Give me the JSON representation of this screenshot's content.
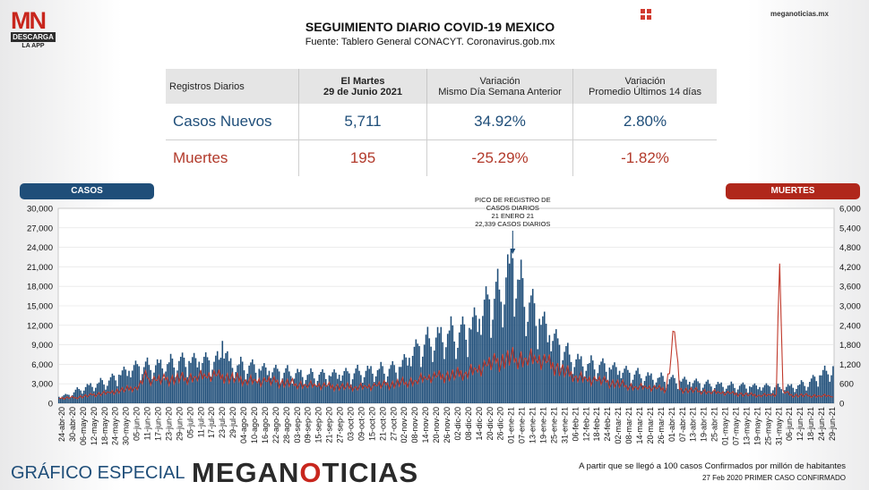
{
  "brand": {
    "logo_mn": "MN",
    "logo_desc": "DESCARGA",
    "logo_app": "LA APP",
    "site": "meganoticias.mx",
    "footer_left": "GRÁFICO ESPECIAL",
    "footer_brand_a": "MEGAN",
    "footer_brand_b": "O",
    "footer_brand_c": "TICIAS"
  },
  "header": {
    "title": "SEGUIMIENTO DIARIO COVID-19 MEXICO",
    "source": "Fuente: Tablero General CONACYT. Coronavirus.gob.mx"
  },
  "table": {
    "h0": "Registros Diarios",
    "h1a": "El Martes",
    "h1b": "29 de Junio 2021",
    "h2a": "Variación",
    "h2b": "Mismo Día Semana Anterior",
    "h3a": "Variación",
    "h3b": "Promedio Últimos 14 días",
    "rows": [
      {
        "label": "Casos Nuevos",
        "value": "5,711",
        "var_week": "34.92%",
        "var_14": "2.80%"
      },
      {
        "label": "Muertes",
        "value": "195",
        "var_week": "-25.29%",
        "var_14": "-1.82%"
      }
    ]
  },
  "legend": {
    "casos": "CASOS",
    "muertes": "MUERTES"
  },
  "footer": {
    "note1": "A partir que se llegó a 100 casos Confirmados por millón de habitantes",
    "note2": "27 Feb 2020 PRIMER CASO CONFIRMADO"
  },
  "chart_data": {
    "type": "bar",
    "colors": {
      "cases": "#1f4e79",
      "deaths": "#c0392b",
      "grid": "#e0e0e0"
    },
    "y_left": {
      "label": "CASOS",
      "ylim": [
        0,
        30000
      ],
      "ticks": [
        "0",
        "3,000",
        "6,000",
        "9,000",
        "12,000",
        "15,000",
        "18,000",
        "21,000",
        "24,000",
        "27,000",
        "30,000"
      ]
    },
    "y_right": {
      "label": "MUERTES",
      "ylim": [
        0,
        6000
      ],
      "ticks": [
        "0",
        "600",
        "1,200",
        "1,800",
        "2,400",
        "3,000",
        "3,600",
        "4,200",
        "4,800",
        "5,400",
        "6,000"
      ]
    },
    "x_ticks": [
      "24-abr-20",
      "30-abr-20",
      "06-may-20",
      "12-may-20",
      "18-may-20",
      "24-may-20",
      "30-may-20",
      "05-jun-20",
      "11-jun-20",
      "17-jun-20",
      "23-jun-20",
      "29-jun-20",
      "05-jul-20",
      "11-jul-20",
      "17-jul-20",
      "23-jul-20",
      "29-jul-20",
      "04-ago-20",
      "10-ago-20",
      "16-ago-20",
      "22-ago-20",
      "28-ago-20",
      "03-sep-20",
      "09-sep-20",
      "15-sep-20",
      "21-sep-20",
      "27-sep-20",
      "03-oct-20",
      "09-oct-20",
      "15-oct-20",
      "21-oct-20",
      "27-oct-20",
      "02-nov-20",
      "08-nov-20",
      "14-nov-20",
      "20-nov-20",
      "26-nov-20",
      "02-dic-20",
      "08-dic-20",
      "14-dic-20",
      "20-dic-20",
      "26-dic-20",
      "01-ene-21",
      "07-ene-21",
      "13-ene-21",
      "19-ene-21",
      "25-ene-21",
      "31-ene-21",
      "06-feb-21",
      "12-feb-21",
      "18-feb-21",
      "24-feb-21",
      "02-mar-21",
      "08-mar-21",
      "14-mar-21",
      "20-mar-21",
      "26-mar-21",
      "01-abr-21",
      "07-abr-21",
      "13-abr-21",
      "19-abr-21",
      "25-abr-21",
      "01-may-21",
      "07-may-21",
      "13-may-21",
      "19-may-21",
      "25-may-21",
      "31-may-21",
      "06-jun-21",
      "12-jun-21",
      "18-jun-21",
      "24-jun-21",
      "29-jun-21"
    ],
    "cases_keypoints": [
      [
        0,
        1000
      ],
      [
        6,
        1300
      ],
      [
        12,
        2200
      ],
      [
        18,
        2800
      ],
      [
        24,
        3200
      ],
      [
        30,
        3500
      ],
      [
        36,
        4400
      ],
      [
        42,
        5000
      ],
      [
        48,
        5700
      ],
      [
        54,
        5900
      ],
      [
        60,
        6200
      ],
      [
        66,
        6300
      ],
      [
        72,
        6500
      ],
      [
        78,
        6500
      ],
      [
        84,
        6400
      ],
      [
        90,
        6600
      ],
      [
        96,
        6700
      ],
      [
        98,
        9600
      ],
      [
        102,
        6500
      ],
      [
        108,
        6000
      ],
      [
        114,
        5800
      ],
      [
        120,
        5300
      ],
      [
        126,
        5000
      ],
      [
        132,
        4900
      ],
      [
        138,
        4900
      ],
      [
        144,
        4800
      ],
      [
        150,
        4500
      ],
      [
        156,
        4400
      ],
      [
        162,
        4300
      ],
      [
        168,
        4400
      ],
      [
        174,
        4600
      ],
      [
        180,
        5000
      ],
      [
        186,
        5300
      ],
      [
        192,
        5300
      ],
      [
        198,
        5300
      ],
      [
        204,
        5600
      ],
      [
        210,
        7000
      ],
      [
        216,
        8800
      ],
      [
        222,
        10000
      ],
      [
        228,
        10800
      ],
      [
        234,
        11200
      ],
      [
        240,
        10900
      ],
      [
        246,
        11600
      ],
      [
        252,
        13000
      ],
      [
        258,
        16000
      ],
      [
        264,
        17500
      ],
      [
        270,
        21500
      ],
      [
        272,
        22339
      ],
      [
        276,
        19000
      ],
      [
        282,
        15500
      ],
      [
        288,
        13000
      ],
      [
        294,
        10500
      ],
      [
        300,
        9000
      ],
      [
        306,
        7500
      ],
      [
        312,
        6800
      ],
      [
        318,
        6200
      ],
      [
        324,
        5900
      ],
      [
        330,
        5500
      ],
      [
        336,
        5000
      ],
      [
        342,
        4700
      ],
      [
        348,
        4500
      ],
      [
        354,
        4300
      ],
      [
        360,
        4000
      ],
      [
        366,
        3700
      ],
      [
        372,
        3500
      ],
      [
        378,
        3300
      ],
      [
        384,
        3100
      ],
      [
        390,
        3000
      ],
      [
        396,
        3000
      ],
      [
        402,
        2800
      ],
      [
        408,
        2700
      ],
      [
        414,
        2600
      ],
      [
        420,
        2500
      ],
      [
        426,
        2600
      ],
      [
        432,
        2500
      ],
      [
        438,
        2700
      ],
      [
        444,
        2900
      ],
      [
        450,
        3300
      ],
      [
        456,
        4300
      ],
      [
        460,
        5000
      ],
      [
        464,
        5711
      ]
    ],
    "deaths_keypoints": [
      [
        0,
        150
      ],
      [
        10,
        180
      ],
      [
        20,
        250
      ],
      [
        30,
        340
      ],
      [
        40,
        420
      ],
      [
        46,
        500
      ],
      [
        50,
        600
      ],
      [
        52,
        1000
      ],
      [
        54,
        750
      ],
      [
        58,
        700
      ],
      [
        64,
        720
      ],
      [
        70,
        750
      ],
      [
        76,
        780
      ],
      [
        82,
        820
      ],
      [
        88,
        820
      ],
      [
        94,
        840
      ],
      [
        100,
        800
      ],
      [
        106,
        760
      ],
      [
        112,
        720
      ],
      [
        118,
        700
      ],
      [
        124,
        680
      ],
      [
        130,
        650
      ],
      [
        136,
        620
      ],
      [
        142,
        600
      ],
      [
        148,
        570
      ],
      [
        154,
        540
      ],
      [
        160,
        520
      ],
      [
        166,
        510
      ],
      [
        172,
        500
      ],
      [
        178,
        510
      ],
      [
        184,
        520
      ],
      [
        190,
        540
      ],
      [
        196,
        560
      ],
      [
        202,
        600
      ],
      [
        208,
        650
      ],
      [
        214,
        700
      ],
      [
        220,
        760
      ],
      [
        226,
        800
      ],
      [
        232,
        830
      ],
      [
        238,
        880
      ],
      [
        244,
        960
      ],
      [
        250,
        1050
      ],
      [
        256,
        1150
      ],
      [
        262,
        1250
      ],
      [
        268,
        1350
      ],
      [
        274,
        1400
      ],
      [
        280,
        1380
      ],
      [
        286,
        1320
      ],
      [
        292,
        1250
      ],
      [
        298,
        1100
      ],
      [
        304,
        950
      ],
      [
        310,
        840
      ],
      [
        316,
        760
      ],
      [
        322,
        700
      ],
      [
        328,
        650
      ],
      [
        334,
        600
      ],
      [
        340,
        550
      ],
      [
        346,
        500
      ],
      [
        352,
        480
      ],
      [
        358,
        450
      ],
      [
        364,
        430
      ],
      [
        369,
        2200
      ],
      [
        372,
        420
      ],
      [
        378,
        400
      ],
      [
        384,
        380
      ],
      [
        390,
        350
      ],
      [
        396,
        320
      ],
      [
        402,
        300
      ],
      [
        408,
        280
      ],
      [
        414,
        260
      ],
      [
        420,
        250
      ],
      [
        426,
        260
      ],
      [
        430,
        280
      ],
      [
        432,
        4300
      ],
      [
        434,
        400
      ],
      [
        438,
        250
      ],
      [
        444,
        240
      ],
      [
        450,
        240
      ],
      [
        456,
        230
      ],
      [
        462,
        220
      ],
      [
        464,
        195
      ]
    ],
    "annotation": {
      "lines": [
        "PICO DE REGISTRO DE",
        "CASOS DIARIOS",
        "21 ENERO 21",
        "22,339 CASOS DIARIOS"
      ],
      "day_index": 272,
      "value": 22339
    }
  }
}
